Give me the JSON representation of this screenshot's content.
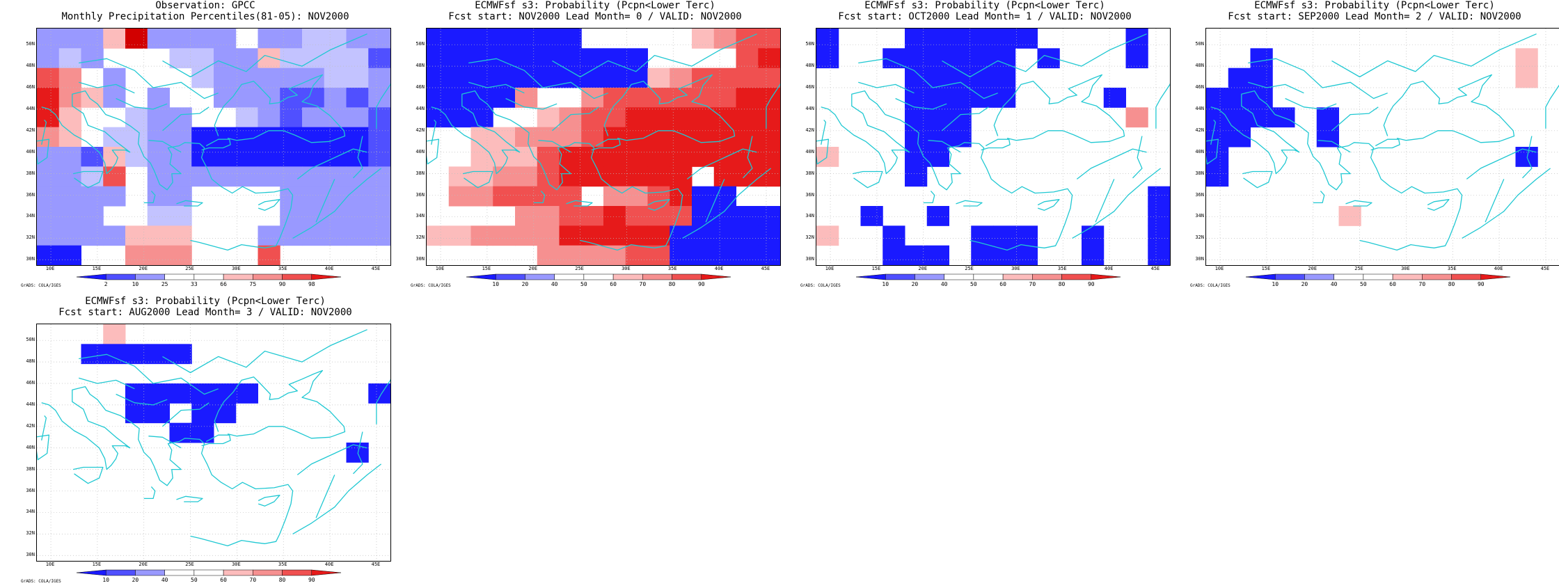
{
  "colors": {
    "blue_strong": "#1a1aff",
    "blue_mid": "#5050ff",
    "blue_light": "#9999ff",
    "blue_pale": "#c3c3ff",
    "red_pale": "#fcbcbc",
    "red_light": "#f69090",
    "red_mid": "#f05050",
    "red_strong": "#e61a1a",
    "red_dark": "#d20000",
    "coast": "#20c8d2",
    "grid": "#bdbdbd"
  },
  "axes": {
    "lon_labels": [
      "10E",
      "15E",
      "20E",
      "25E",
      "30E",
      "35E",
      "40E",
      "45E"
    ],
    "lat_labels": [
      "50N",
      "48N",
      "46N",
      "44N",
      "42N",
      "40N",
      "38N",
      "36N",
      "34N",
      "32N",
      "30N"
    ]
  },
  "credit": "GrADS: COLA/IGES",
  "palette_keys": [
    "blue_strong",
    "blue_mid",
    "blue_light",
    "blue_pale",
    "white",
    "red_pale",
    "red_light",
    "red_mid",
    "red_strong",
    "red_dark"
  ],
  "panels": [
    {
      "title_line1": "Observation: GPCC",
      "title_line2": "Monthly Precipitation Percentiles(81-05): NOV2000",
      "colorbar_ticks": [
        "2",
        "10",
        "25",
        "33",
        "66",
        "75",
        "90",
        "98"
      ],
      "grid": [
        "2225922224223322",
        "2324443322533331",
        "7642444322222332",
        "8652424422211212",
        "8544322443212221",
        "6543322000000001",
        "2215322000000001",
        "2237422222222222",
        "2222422444422222",
        "2224433444422222",
        "2222555444222222",
        "0044666444744444"
      ]
    },
    {
      "title_line1": "ECMWFsf s3: Probability (Pcpn<Lower Terc)",
      "title_line2": "Fcst start: NOV2000  Lead Month= 0 / VALID: NOV2000",
      "colorbar_ticks": [
        "10",
        "20",
        "40",
        "50",
        "60",
        "70",
        "80",
        "90"
      ],
      "grid": [
        "0000000444445677",
        "0000000000444478",
        "0000000000567777",
        "0000644677777788",
        "0004456778888888",
        "4455666788888888",
        "4455578888888888",
        "4556678888884888",
        "4667777466780044",
        "4444667787770000",
        "5566668888800000",
        "4444466667700000"
      ]
    },
    {
      "title_line1": "ECMWFsf s3: Probability (Pcpn<Lower Terc)",
      "title_line2": "Fcst start: OCT2000  Lead Month= 1 / VALID: NOV2000",
      "colorbar_ticks": [
        "10",
        "20",
        "40",
        "50",
        "60",
        "70",
        "80",
        "90"
      ],
      "grid": [
        "0444000000444404",
        "0440000004044404",
        "4444000004444444",
        "4444000004444044",
        "4444000444444464",
        "4444000444444444",
        "5444004444444444",
        "4444044444444444",
        "4444444444444440",
        "4404404444444440",
        "5440444000440440",
        "4440004000440440"
      ]
    },
    {
      "title_line1": "ECMWFsf s3: Probability (Pcpn<Lower Terc)",
      "title_line2": "Fcst start: SEP2000  Lead Month= 2 / VALID: NOV2000",
      "colorbar_ticks": [
        "10",
        "20",
        "40",
        "50",
        "60",
        "70",
        "80",
        "90"
      ],
      "grid": [
        "4444444444444444",
        "4404444444444454",
        "4004444444444454",
        "0004444444444444",
        "0000404444444444",
        "0044404444444444",
        "0444444444444404",
        "0444444444444444",
        "4444444444444444",
        "4444445444444444",
        "4444444444444444",
        "4444444444444444"
      ]
    },
    {
      "title_line1": "ECMWFsf s3: Probability (Pcpn<Lower Terc)",
      "title_line2": "Fcst start: AUG2000  Lead Month= 3 / VALID: NOV2000",
      "colorbar_ticks": [
        "10",
        "20",
        "40",
        "50",
        "60",
        "70",
        "80",
        "90"
      ],
      "grid": [
        "4445444444444444",
        "4400000444444444",
        "4444444444444444",
        "4444000000444440",
        "4444004004444444",
        "4444440044444444",
        "4444444444444404",
        "4444444444444444",
        "4444444444444444",
        "4444444444444444",
        "4444444444444444",
        "4444444444444444"
      ]
    }
  ]
}
